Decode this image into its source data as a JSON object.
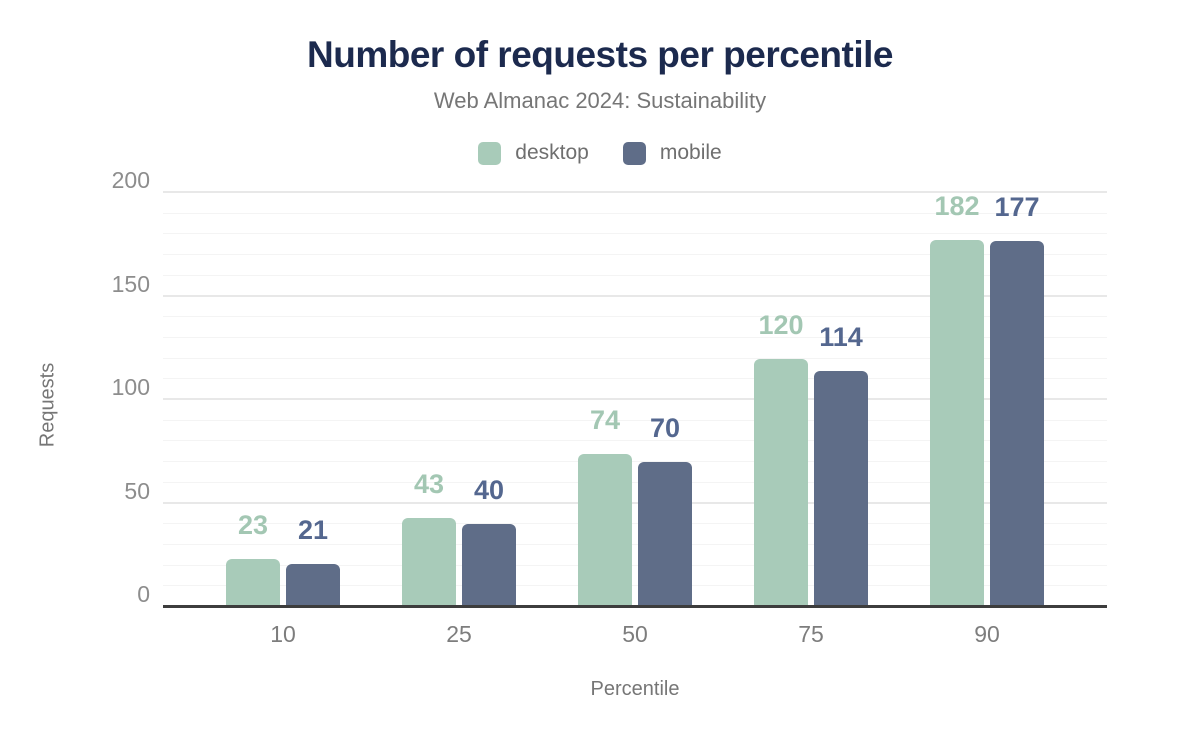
{
  "title": "Number of requests per percentile",
  "subtitle": "Web Almanac 2024: Sustainability",
  "colors": {
    "title_text": "#1c2a4e",
    "subtitle_text": "#767676",
    "axis_line": "#3d3d3d",
    "tick_text": "#8d8d8d",
    "grid_major": "#e8e8e8",
    "grid_minor": "#f4f4f4",
    "background": "#ffffff"
  },
  "chart_data": {
    "type": "bar",
    "categories": [
      "10",
      "25",
      "50",
      "75",
      "90"
    ],
    "series": [
      {
        "name": "desktop",
        "color": "#a8cbb9",
        "label_color": "#a3c7b3",
        "values": [
          23,
          43,
          74,
          120,
          182
        ]
      },
      {
        "name": "mobile",
        "color": "#5f6d88",
        "label_color": "#54678f",
        "values": [
          21,
          40,
          70,
          114,
          177
        ]
      }
    ],
    "title": "Number of requests per percentile",
    "subtitle": "Web Almanac 2024: Sustainability",
    "xlabel": "Percentile",
    "ylabel": "Requests",
    "ylim": [
      0,
      200
    ],
    "y_ticks": [
      0,
      50,
      100,
      150,
      200
    ],
    "grid_minor_step": 10,
    "grid_major_step": 50,
    "grid": true,
    "legend_position": "top"
  }
}
